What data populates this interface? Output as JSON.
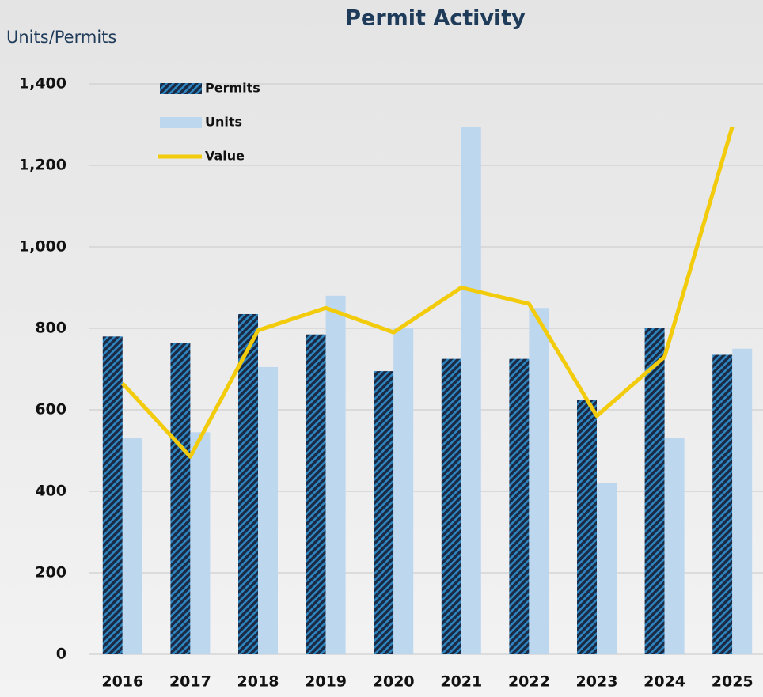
{
  "chart_data": {
    "type": "bar-line",
    "title": "Permit Activity",
    "y_axis_label": "Units/Permits",
    "categories": [
      "2016",
      "2017",
      "2018",
      "2019",
      "2020",
      "2021",
      "2022",
      "2023",
      "2024",
      "2025"
    ],
    "series": [
      {
        "name": "Permits",
        "type": "bar",
        "color": "#1b2b45",
        "values": [
          780,
          765,
          835,
          785,
          695,
          725,
          725,
          625,
          800,
          735
        ]
      },
      {
        "name": "Units",
        "type": "bar",
        "color": "#bdd7ee",
        "values": [
          530,
          545,
          705,
          880,
          800,
          1295,
          850,
          420,
          532,
          750
        ]
      },
      {
        "name": "Value",
        "type": "line",
        "color": "#f2cc0c",
        "values": [
          665,
          485,
          795,
          850,
          790,
          900,
          860,
          585,
          730,
          1295
        ]
      }
    ],
    "ylim": [
      0,
      1400
    ],
    "yticks": [
      0,
      200,
      400,
      600,
      800,
      {
        "value": 1000,
        "label": "1,000"
      },
      {
        "value": 1200,
        "label": "1,200"
      },
      {
        "value": 1400,
        "label": "1,400"
      }
    ],
    "grid": true,
    "legend": "top-left"
  }
}
